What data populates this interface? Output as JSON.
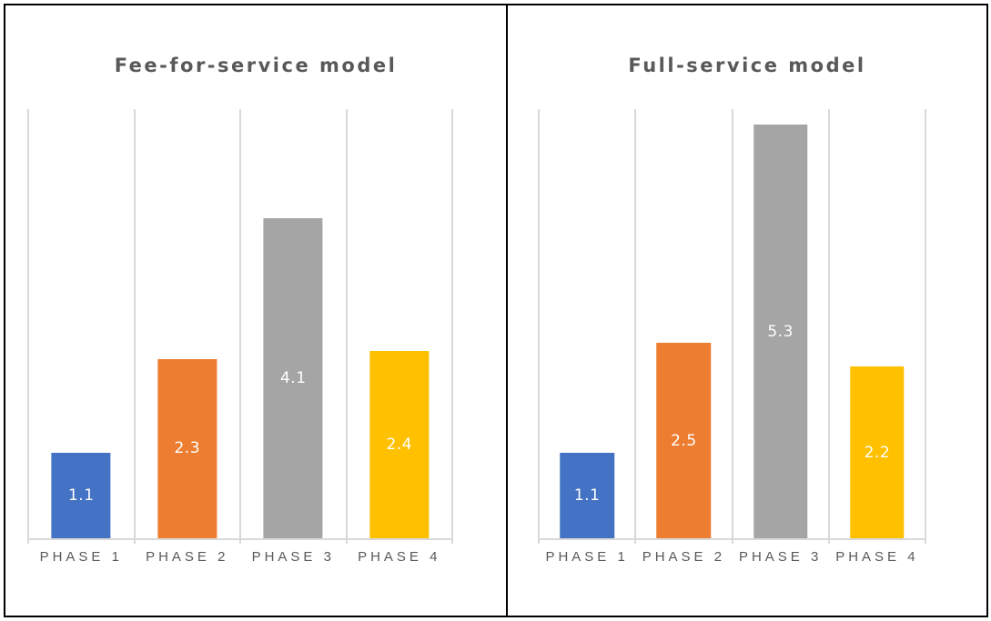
{
  "window": {
    "background": "#FFFFFF",
    "border_color": "#000000"
  },
  "chart_data": [
    {
      "type": "bar",
      "title": "Fee-for-service model",
      "categories": [
        "PHASE 1",
        "PHASE 2",
        "PHASE 3",
        "PHASE 4"
      ],
      "values": [
        1.1,
        2.3,
        4.1,
        2.4
      ],
      "data_labels": [
        "1.1",
        "2.3",
        "4.1",
        "2.4"
      ],
      "xlabel": "",
      "ylabel": "",
      "ylim": [
        0,
        5.5
      ],
      "grid": "vertical category separators only, no horizontal gridlines, no y-axis labels",
      "legend": "none",
      "data_label_position": "center of bar",
      "bar_colors": [
        "#4472C4",
        "#ED7D31",
        "#A5A5A5",
        "#FFC000"
      ],
      "data_label_color": "#FFFFFF",
      "axis_line_color": "#D9D9D9",
      "text_color": "#595959",
      "title_color": "#595959"
    },
    {
      "type": "bar",
      "title": "Full-service model",
      "categories": [
        "PHASE 1",
        "PHASE 2",
        "PHASE 3",
        "PHASE 4"
      ],
      "values": [
        1.1,
        2.5,
        5.3,
        2.2
      ],
      "data_labels": [
        "1.1",
        "2.5",
        "5.3",
        "2.2"
      ],
      "xlabel": "",
      "ylabel": "",
      "ylim": [
        0,
        5.5
      ],
      "grid": "vertical category separators only, no horizontal gridlines, no y-axis labels",
      "legend": "none",
      "data_label_position": "center of bar",
      "bar_colors": [
        "#4472C4",
        "#ED7D31",
        "#A5A5A5",
        "#FFC000"
      ],
      "data_label_color": "#FFFFFF",
      "axis_line_color": "#D9D9D9",
      "text_color": "#595959",
      "title_color": "#595959"
    }
  ]
}
